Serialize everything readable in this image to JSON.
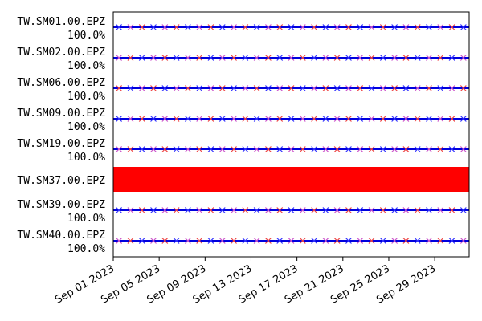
{
  "chart_data": {
    "type": "availability",
    "x_start": "2023-09-01",
    "x_end": "2023-10-01",
    "xlim": [
      "2023-09-01",
      "2023-10-02"
    ],
    "x_ticks": [
      "Sep 01 2023",
      "Sep 05 2023",
      "Sep 09 2023",
      "Sep 13 2023",
      "Sep 17 2023",
      "Sep 21 2023",
      "Sep 25 2023",
      "Sep 29 2023"
    ],
    "series": [
      {
        "name": "TW.SM01.00.EPZ",
        "availability": "100.0%",
        "status": "available"
      },
      {
        "name": "TW.SM02.00.EPZ",
        "availability": "100.0%",
        "status": "available"
      },
      {
        "name": "TW.SM06.00.EPZ",
        "availability": "100.0%",
        "status": "available"
      },
      {
        "name": "TW.SM09.00.EPZ",
        "availability": "100.0%",
        "status": "available"
      },
      {
        "name": "TW.SM19.00.EPZ",
        "availability": "100.0%",
        "status": "available"
      },
      {
        "name": "TW.SM37.00.EPZ",
        "availability": "",
        "status": "gap"
      },
      {
        "name": "TW.SM39.00.EPZ",
        "availability": "100.0%",
        "status": "available"
      },
      {
        "name": "TW.SM40.00.EPZ",
        "availability": "100.0%",
        "status": "available"
      }
    ],
    "colors": {
      "line": "#0000dd",
      "marker_a": "#3333ff",
      "marker_b": "#cc55cc",
      "marker_c": "#ee4444",
      "gap": "#ff0000"
    }
  }
}
